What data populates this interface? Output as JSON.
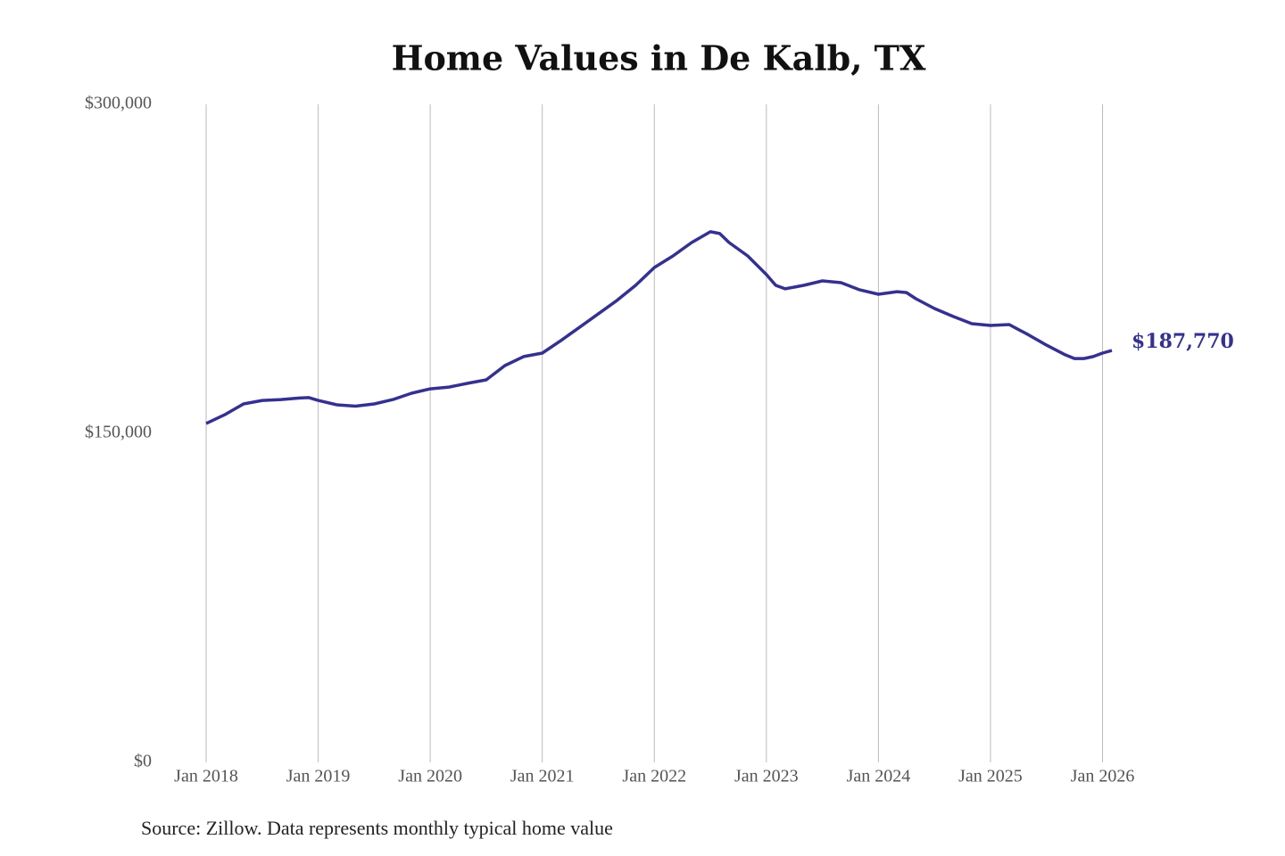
{
  "chart_data": {
    "type": "line",
    "title": "Home Values in De Kalb, TX",
    "source": "Source: Zillow. Data represents monthly typical home value",
    "x": [
      "2018-01",
      "2018-03",
      "2018-05",
      "2018-07",
      "2018-09",
      "2018-11",
      "2018-12",
      "2019-01",
      "2019-03",
      "2019-05",
      "2019-07",
      "2019-09",
      "2019-11",
      "2020-01",
      "2020-03",
      "2020-05",
      "2020-07",
      "2020-09",
      "2020-11",
      "2021-01",
      "2021-03",
      "2021-05",
      "2021-07",
      "2021-09",
      "2021-11",
      "2022-01",
      "2022-03",
      "2022-05",
      "2022-07",
      "2022-08",
      "2022-09",
      "2022-11",
      "2023-01",
      "2023-02",
      "2023-03",
      "2023-05",
      "2023-07",
      "2023-09",
      "2023-11",
      "2024-01",
      "2024-03",
      "2024-04",
      "2024-05",
      "2024-07",
      "2024-09",
      "2024-11",
      "2025-01",
      "2025-03",
      "2025-05",
      "2025-07",
      "2025-09",
      "2025-10",
      "2025-11",
      "2025-12",
      "2026-01",
      "2026-02"
    ],
    "series": [
      {
        "color": "#35318f",
        "values": [
          154500,
          158500,
          163400,
          165000,
          165400,
          166100,
          166300,
          165000,
          163000,
          162400,
          163400,
          165400,
          168300,
          170300,
          171100,
          172800,
          174400,
          180900,
          185000,
          186600,
          192300,
          198400,
          204500,
          210600,
          217500,
          225600,
          230900,
          237000,
          241900,
          241100,
          237000,
          230900,
          222400,
          217500,
          215900,
          217500,
          219500,
          218700,
          215400,
          213400,
          214600,
          214200,
          211400,
          206900,
          203300,
          200000,
          199200,
          199600,
          195100,
          190200,
          185800,
          184100,
          184100,
          185000,
          186600,
          187770
        ],
        "value_labels": [
          null,
          null,
          null,
          null,
          null,
          null,
          null,
          null,
          null,
          null,
          null,
          null,
          null,
          null,
          null,
          null,
          null,
          null,
          null,
          null,
          null,
          null,
          null,
          null,
          null,
          null,
          null,
          null,
          null,
          null,
          null,
          null,
          null,
          null,
          null,
          null,
          null,
          null,
          null,
          null,
          null,
          null,
          null,
          null,
          null,
          null,
          null,
          null,
          null,
          null,
          null,
          null,
          null,
          null,
          null,
          "$187,770"
        ]
      }
    ],
    "xlim": [
      "2018-01",
      "2026-02"
    ],
    "xticks": [
      {
        "value": "2018-01",
        "label": "Jan 2018"
      },
      {
        "value": "2019-01",
        "label": "Jan 2019"
      },
      {
        "value": "2020-01",
        "label": "Jan 2020"
      },
      {
        "value": "2021-01",
        "label": "Jan 2021"
      },
      {
        "value": "2022-01",
        "label": "Jan 2022"
      },
      {
        "value": "2023-01",
        "label": "Jan 2023"
      },
      {
        "value": "2024-01",
        "label": "Jan 2024"
      },
      {
        "value": "2025-01",
        "label": "Jan 2025"
      },
      {
        "value": "2026-01",
        "label": "Jan 2026"
      }
    ],
    "ylim": [
      0,
      300000
    ],
    "yticks": [
      {
        "value": 0,
        "label": "$0"
      },
      {
        "value": 150000,
        "label": "$150,000"
      },
      {
        "value": 300000,
        "label": "$300,000"
      }
    ],
    "grid": true
  }
}
